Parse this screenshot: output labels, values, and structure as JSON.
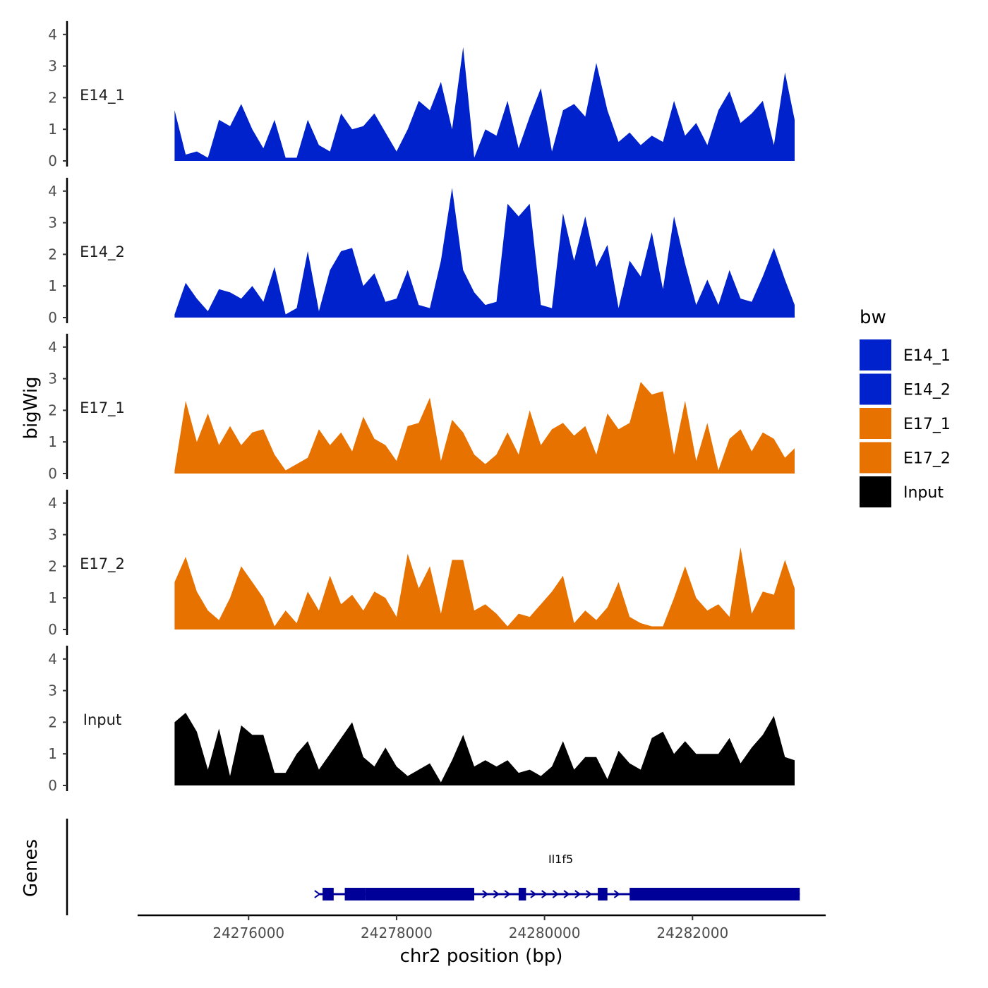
{
  "chart_data": {
    "type": "area",
    "chromosome": "chr2",
    "xlabel": "chr2 position (bp)",
    "ylabel": "bigWig",
    "genes_label": "Genes",
    "xlim": [
      24274500,
      24283800
    ],
    "x_ticks": [
      24276000,
      24278000,
      24280000,
      24282000
    ],
    "x_tick_labels": [
      "24276000",
      "24278000",
      "24280000",
      "24282000"
    ],
    "ylim": [
      0,
      4.2
    ],
    "y_ticks": [
      0,
      1,
      2,
      3,
      4
    ],
    "y_tick_labels": [
      "0",
      "1",
      "2",
      "3",
      "4"
    ],
    "legend": {
      "title": "bw",
      "entries": [
        {
          "label": "E14_1",
          "color": "#0022cc"
        },
        {
          "label": "E14_2",
          "color": "#0022cc"
        },
        {
          "label": "E17_1",
          "color": "#e87200"
        },
        {
          "label": "E17_2",
          "color": "#e87200"
        },
        {
          "label": "Input",
          "color": "#000000"
        }
      ]
    },
    "series": [
      {
        "name": "E14_1",
        "color": "#0022cc",
        "x": [
          24275000,
          24275150,
          24275300,
          24275450,
          24275600,
          24275750,
          24275900,
          24276050,
          24276200,
          24276350,
          24276500,
          24276650,
          24276800,
          24276950,
          24277100,
          24277250,
          24277400,
          24277550,
          24277700,
          24277850,
          24278000,
          24278150,
          24278300,
          24278450,
          24278600,
          24278750,
          24278900,
          24279050,
          24279200,
          24279350,
          24279500,
          24279650,
          24279800,
          24279950,
          24280100,
          24280250,
          24280400,
          24280550,
          24280700,
          24280850,
          24281000,
          24281150,
          24281300,
          24281450,
          24281600,
          24281750,
          24281900,
          24282050,
          24282200,
          24282350,
          24282500,
          24282650,
          24282800,
          24282950,
          24283100,
          24283250,
          24283380
        ],
        "values": [
          1.6,
          0.2,
          0.3,
          0.1,
          1.3,
          1.1,
          1.8,
          1.0,
          0.4,
          1.3,
          0.1,
          0.1,
          1.3,
          0.5,
          0.3,
          1.5,
          1.0,
          1.1,
          1.5,
          0.9,
          0.3,
          1.0,
          1.9,
          1.6,
          2.5,
          1.0,
          3.6,
          0.1,
          1.0,
          0.8,
          1.9,
          0.4,
          1.4,
          2.3,
          0.3,
          1.6,
          1.8,
          1.4,
          3.1,
          1.6,
          0.6,
          0.9,
          0.5,
          0.8,
          0.6,
          1.9,
          0.8,
          1.2,
          0.5,
          1.6,
          2.2,
          1.2,
          1.5,
          1.9,
          0.5,
          2.8,
          1.3
        ]
      },
      {
        "name": "E14_2",
        "color": "#0022cc",
        "x": [
          24275000,
          24275150,
          24275300,
          24275450,
          24275600,
          24275750,
          24275900,
          24276050,
          24276200,
          24276350,
          24276500,
          24276650,
          24276800,
          24276950,
          24277100,
          24277250,
          24277400,
          24277550,
          24277700,
          24277850,
          24278000,
          24278150,
          24278300,
          24278450,
          24278600,
          24278750,
          24278900,
          24279050,
          24279200,
          24279350,
          24279500,
          24279650,
          24279800,
          24279950,
          24280100,
          24280250,
          24280400,
          24280550,
          24280700,
          24280850,
          24281000,
          24281150,
          24281300,
          24281450,
          24281600,
          24281750,
          24281900,
          24282050,
          24282200,
          24282350,
          24282500,
          24282650,
          24282800,
          24282950,
          24283100,
          24283250,
          24283380
        ],
        "values": [
          0.1,
          1.1,
          0.6,
          0.2,
          0.9,
          0.8,
          0.6,
          1.0,
          0.5,
          1.6,
          0.1,
          0.3,
          2.1,
          0.2,
          1.5,
          2.1,
          2.2,
          1.0,
          1.4,
          0.5,
          0.6,
          1.5,
          0.4,
          0.3,
          1.8,
          4.1,
          1.5,
          0.8,
          0.4,
          0.5,
          3.6,
          3.2,
          3.6,
          0.4,
          0.3,
          3.3,
          1.8,
          3.2,
          1.6,
          2.3,
          0.3,
          1.8,
          1.3,
          2.7,
          0.9,
          3.2,
          1.7,
          0.4,
          1.2,
          0.4,
          1.5,
          0.6,
          0.5,
          1.3,
          2.2,
          1.2,
          0.4
        ]
      },
      {
        "name": "E17_1",
        "color": "#e87200",
        "x": [
          24275000,
          24275150,
          24275300,
          24275450,
          24275600,
          24275750,
          24275900,
          24276050,
          24276200,
          24276350,
          24276500,
          24276650,
          24276800,
          24276950,
          24277100,
          24277250,
          24277400,
          24277550,
          24277700,
          24277850,
          24278000,
          24278150,
          24278300,
          24278450,
          24278600,
          24278750,
          24278900,
          24279050,
          24279200,
          24279350,
          24279500,
          24279650,
          24279800,
          24279950,
          24280100,
          24280250,
          24280400,
          24280550,
          24280700,
          24280850,
          24281000,
          24281150,
          24281300,
          24281450,
          24281600,
          24281750,
          24281900,
          24282050,
          24282200,
          24282350,
          24282500,
          24282650,
          24282800,
          24282950,
          24283100,
          24283250,
          24283380
        ],
        "values": [
          0.1,
          2.3,
          1.0,
          1.9,
          0.9,
          1.5,
          0.9,
          1.3,
          1.4,
          0.6,
          0.1,
          0.3,
          0.5,
          1.4,
          0.9,
          1.3,
          0.7,
          1.8,
          1.1,
          0.9,
          0.4,
          1.5,
          1.6,
          2.4,
          0.4,
          1.7,
          1.3,
          0.6,
          0.3,
          0.6,
          1.3,
          0.6,
          2.0,
          0.9,
          1.4,
          1.6,
          1.2,
          1.5,
          0.6,
          1.9,
          1.4,
          1.6,
          2.9,
          2.5,
          2.6,
          0.6,
          2.3,
          0.4,
          1.6,
          0.1,
          1.1,
          1.4,
          0.7,
          1.3,
          1.1,
          0.5,
          0.8
        ]
      },
      {
        "name": "E17_2",
        "color": "#e87200",
        "x": [
          24275000,
          24275150,
          24275300,
          24275450,
          24275600,
          24275750,
          24275900,
          24276050,
          24276200,
          24276350,
          24276500,
          24276650,
          24276800,
          24276950,
          24277100,
          24277250,
          24277400,
          24277550,
          24277700,
          24277850,
          24278000,
          24278150,
          24278300,
          24278450,
          24278600,
          24278750,
          24278900,
          24279050,
          24279200,
          24279350,
          24279500,
          24279650,
          24279800,
          24279950,
          24280100,
          24280250,
          24280400,
          24280550,
          24280700,
          24280850,
          24281000,
          24281150,
          24281300,
          24281450,
          24281600,
          24281750,
          24281900,
          24282050,
          24282200,
          24282350,
          24282500,
          24282650,
          24282800,
          24282950,
          24283100,
          24283250,
          24283380
        ],
        "values": [
          1.5,
          2.3,
          1.2,
          0.6,
          0.3,
          1.0,
          2.0,
          1.5,
          1.0,
          0.1,
          0.6,
          0.2,
          1.2,
          0.6,
          1.7,
          0.8,
          1.1,
          0.6,
          1.2,
          1.0,
          0.4,
          2.4,
          1.3,
          2.0,
          0.5,
          2.2,
          2.2,
          0.6,
          0.8,
          0.5,
          0.1,
          0.5,
          0.4,
          0.8,
          1.2,
          1.7,
          0.2,
          0.6,
          0.3,
          0.7,
          1.5,
          0.4,
          0.2,
          0.1,
          0.1,
          1.0,
          2.0,
          1.0,
          0.6,
          0.8,
          0.4,
          2.6,
          0.5,
          1.2,
          1.1,
          2.2,
          1.3
        ]
      },
      {
        "name": "Input",
        "color": "#000000",
        "x": [
          24275000,
          24275150,
          24275300,
          24275450,
          24275600,
          24275750,
          24275900,
          24276050,
          24276200,
          24276350,
          24276500,
          24276650,
          24276800,
          24276950,
          24277100,
          24277250,
          24277400,
          24277550,
          24277700,
          24277850,
          24278000,
          24278150,
          24278300,
          24278450,
          24278600,
          24278750,
          24278900,
          24279050,
          24279200,
          24279350,
          24279500,
          24279650,
          24279800,
          24279950,
          24280100,
          24280250,
          24280400,
          24280550,
          24280700,
          24280850,
          24281000,
          24281150,
          24281300,
          24281450,
          24281600,
          24281750,
          24281900,
          24282050,
          24282200,
          24282350,
          24282500,
          24282650,
          24282800,
          24282950,
          24283100,
          24283250,
          24283380
        ],
        "values": [
          2.0,
          2.3,
          1.7,
          0.5,
          1.8,
          0.3,
          1.9,
          1.6,
          1.6,
          0.4,
          0.4,
          1.0,
          1.4,
          0.5,
          1.0,
          1.5,
          2.0,
          0.9,
          0.6,
          1.2,
          0.6,
          0.3,
          0.5,
          0.7,
          0.1,
          0.8,
          1.6,
          0.6,
          0.8,
          0.6,
          0.8,
          0.4,
          0.5,
          0.3,
          0.6,
          1.4,
          0.5,
          0.9,
          0.9,
          0.2,
          1.1,
          0.7,
          0.5,
          1.5,
          1.7,
          1.0,
          1.4,
          1.0,
          1.0,
          1.0,
          1.5,
          0.7,
          1.2,
          1.6,
          2.2,
          0.9,
          0.8
        ]
      }
    ],
    "genes": [
      {
        "name": "Il1f5",
        "strand": "+",
        "color": "#000099",
        "start": 24276950,
        "end": 24283450,
        "exons": [
          [
            24277000,
            24277150
          ],
          [
            24277300,
            24277580
          ],
          [
            24277580,
            24279050
          ],
          [
            24279650,
            24279750
          ],
          [
            24280720,
            24280850
          ],
          [
            24281150,
            24283450
          ]
        ],
        "arrow_positions": [
          24279200,
          24279350,
          24279500,
          24279850,
          24280000,
          24280150,
          24280300,
          24280450,
          24280600,
          24280980
        ]
      }
    ]
  }
}
